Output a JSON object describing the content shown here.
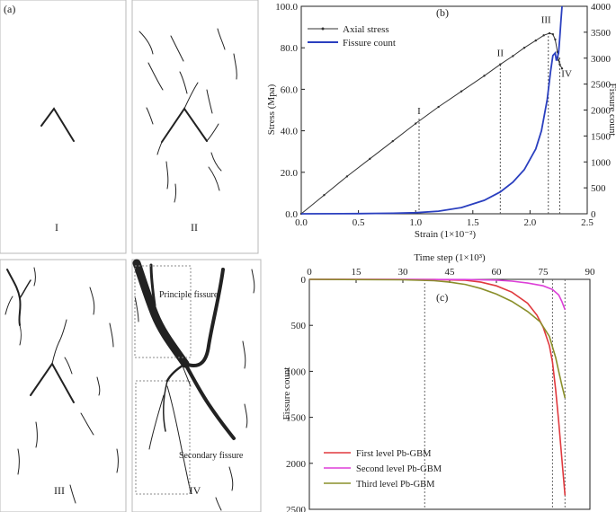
{
  "panel_a": {
    "tag": "(a)",
    "panel_labels": [
      "I",
      "II",
      "III",
      "IV"
    ],
    "principle_label": "Principle fissure",
    "secondary_label": "Secondary fissure",
    "colors": {
      "frame": "#b8b8b8",
      "fissure": "#222222",
      "box": "#888888"
    }
  },
  "panel_b": {
    "tag": "(b)",
    "colors": {
      "stress": "#333333",
      "count": "#2a3fbf"
    }
  },
  "panel_c": {
    "tag": "(c)",
    "colors": {
      "first": "#e0393e",
      "second": "#dd3fd8",
      "third": "#8a8f2a"
    }
  },
  "chart_data": [
    {
      "id": "b",
      "type": "line",
      "xlabel": "Strain (1×10⁻²)",
      "ylabel": "Stress (Mpa)",
      "y2label": "Fissure count",
      "xlim": [
        0,
        2.5
      ],
      "ylim": [
        0,
        100
      ],
      "y2lim": [
        0,
        4000
      ],
      "xticks": [
        "0.0",
        "0.5",
        "1.0",
        "1.5",
        "2.0",
        "2.5"
      ],
      "yticks": [
        "0.0",
        "20.0",
        "40.0",
        "60.0",
        "80.0",
        "100.0"
      ],
      "y2ticks": [
        "0",
        "500",
        "1000",
        "1500",
        "2000",
        "2500",
        "3000",
        "3500",
        "4000"
      ],
      "legend": [
        "Axial stress",
        "Fissure count"
      ],
      "legend_position": "top-left",
      "series": [
        {
          "name": "Axial stress",
          "axis": "left",
          "x": [
            0.0,
            0.2,
            0.4,
            0.6,
            0.8,
            1.0,
            1.2,
            1.4,
            1.6,
            1.74,
            1.85,
            1.95,
            2.05,
            2.12,
            2.17,
            2.2,
            2.22,
            2.24,
            2.25,
            2.26,
            2.28
          ],
          "y": [
            0.0,
            9.0,
            18.0,
            26.5,
            35.0,
            43.5,
            51.5,
            59.0,
            66.5,
            72.0,
            76.0,
            80.0,
            83.5,
            86.0,
            87.0,
            86.5,
            84.0,
            78.0,
            74.0,
            72.0,
            70.0
          ]
        },
        {
          "name": "Fissure count",
          "axis": "right",
          "x": [
            0.0,
            0.5,
            0.8,
            1.0,
            1.2,
            1.4,
            1.6,
            1.74,
            1.85,
            1.95,
            2.05,
            2.1,
            2.15,
            2.18,
            2.2,
            2.22,
            2.23,
            2.25,
            2.26,
            2.27,
            2.28
          ],
          "y": [
            0,
            3,
            10,
            20,
            50,
            120,
            260,
            420,
            610,
            850,
            1250,
            1600,
            2200,
            2750,
            3050,
            3100,
            2950,
            3100,
            3400,
            3700,
            4000
          ]
        }
      ],
      "stage_markers": [
        {
          "label": "I",
          "x": 1.03
        },
        {
          "label": "II",
          "x": 1.74
        },
        {
          "label": "III",
          "x": 2.16
        },
        {
          "label": "IV",
          "x": 2.26
        }
      ]
    },
    {
      "id": "c",
      "type": "line",
      "xlabel": "Time step (1×10³)",
      "ylabel": "Fissure count",
      "xlim": [
        0,
        90
      ],
      "ylim": [
        0,
        2500
      ],
      "y_inverted": true,
      "xticks": [
        "0",
        "15",
        "30",
        "45",
        "60",
        "75",
        "90"
      ],
      "yticks": [
        "0",
        "500",
        "1000",
        "1500",
        "2000",
        "2500"
      ],
      "legend": [
        "First level Pb-GBM",
        "Second level Pb-GBM",
        "Third level Pb-GBM"
      ],
      "legend_position": "bottom-left",
      "series": [
        {
          "name": "First level Pb-GBM",
          "x": [
            0,
            40,
            50,
            55,
            60,
            65,
            70,
            73,
            75,
            77,
            78,
            79,
            80,
            81,
            82
          ],
          "y": [
            0,
            2,
            10,
            30,
            70,
            140,
            260,
            390,
            520,
            720,
            900,
            1200,
            1550,
            1950,
            2350
          ]
        },
        {
          "name": "Second level Pb-GBM",
          "x": [
            0,
            50,
            60,
            65,
            70,
            75,
            78,
            80,
            81,
            82
          ],
          "y": [
            0,
            2,
            8,
            20,
            40,
            70,
            110,
            170,
            240,
            330
          ]
        },
        {
          "name": "Third level Pb-GBM",
          "x": [
            0,
            30,
            40,
            45,
            50,
            55,
            60,
            65,
            70,
            74,
            77,
            79,
            80,
            81,
            82
          ],
          "y": [
            0,
            5,
            15,
            30,
            55,
            100,
            160,
            240,
            350,
            460,
            620,
            850,
            1000,
            1150,
            1290
          ]
        }
      ],
      "dashed_markers_x": [
        37,
        78,
        82
      ]
    }
  ]
}
